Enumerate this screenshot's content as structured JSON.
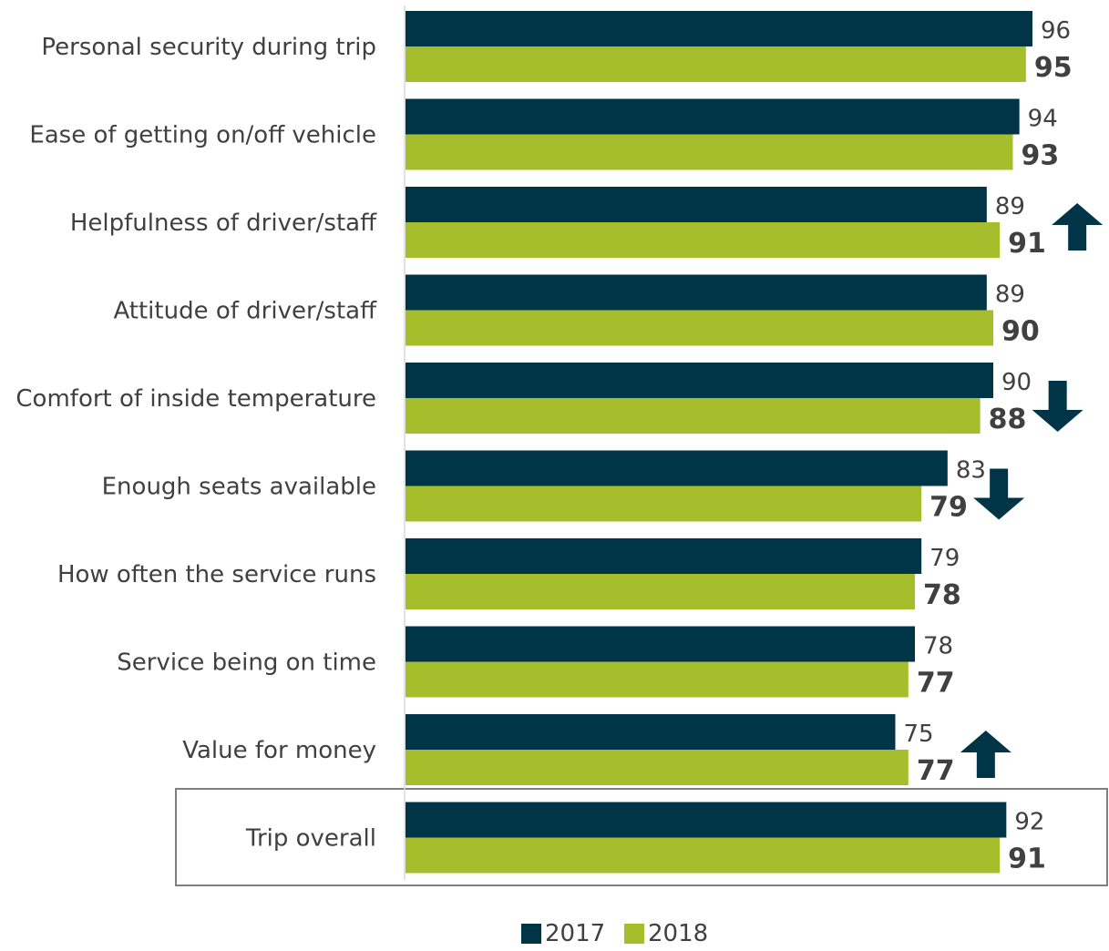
{
  "chart_data": {
    "type": "bar",
    "orientation": "horizontal",
    "categories": [
      "Personal security during trip",
      "Ease of getting on/off vehicle",
      "Helpfulness of driver/staff",
      "Attitude of driver/staff",
      "Comfort of inside temperature",
      "Enough seats available",
      "How often the service runs",
      "Service being on time",
      "Value for money",
      "Trip overall"
    ],
    "series": [
      {
        "name": "2017",
        "color": "#003547",
        "values": [
          96,
          94,
          89,
          89,
          90,
          83,
          79,
          78,
          75,
          92
        ]
      },
      {
        "name": "2018",
        "color": "#a7be2c",
        "values": [
          95,
          93,
          91,
          90,
          88,
          79,
          78,
          77,
          77,
          91
        ]
      }
    ],
    "changes": [
      "none",
      "none",
      "up",
      "none",
      "down",
      "down",
      "none",
      "none",
      "up",
      "none"
    ],
    "change_arrow_color": "#003547",
    "highlighted_category": "Trip overall",
    "xlim": [
      0,
      100
    ],
    "grid": false,
    "legend_position": "bottom-center"
  }
}
